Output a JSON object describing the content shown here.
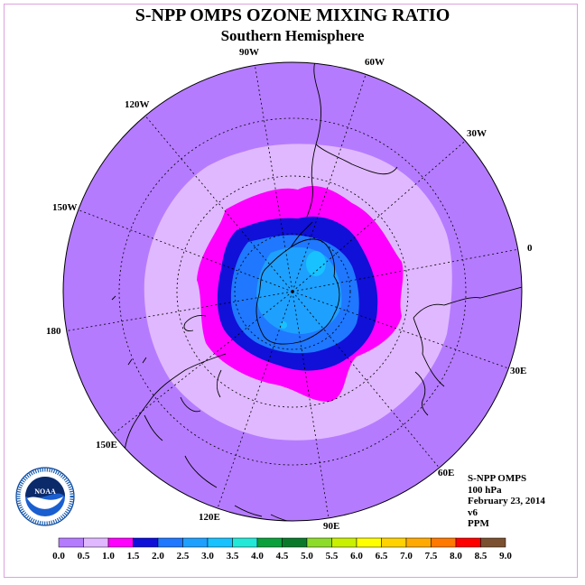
{
  "title": "S-NPP OMPS OZONE MIXING RATIO",
  "subtitle": "Southern Hemisphere",
  "longitude_labels": [
    {
      "key": "90w",
      "text": "90W"
    },
    {
      "key": "60w",
      "text": "60W"
    },
    {
      "key": "30w",
      "text": "30W"
    },
    {
      "key": "0",
      "text": "0"
    },
    {
      "key": "30e",
      "text": "30E"
    },
    {
      "key": "60e",
      "text": "60E"
    },
    {
      "key": "90e",
      "text": "90E"
    },
    {
      "key": "120e",
      "text": "120E"
    },
    {
      "key": "150e",
      "text": "150E"
    },
    {
      "key": "180",
      "text": "180"
    },
    {
      "key": "150w",
      "text": "150W"
    },
    {
      "key": "120w",
      "text": "120W"
    }
  ],
  "logo": {
    "text": "NOAA",
    "ring_text": "NATIONAL OCEANIC AND ATMOSPHERIC ADMINISTRATION · U.S. DEPARTMENT OF COMMERCE"
  },
  "info": {
    "instrument": "S-NPP OMPS",
    "level": "100 hPa",
    "date": "February 23, 2014",
    "version": "v6",
    "units": "PPM"
  },
  "colorbar": {
    "labels": [
      "0.0",
      "0.5",
      "1.0",
      "1.5",
      "2.0",
      "2.5",
      "3.0",
      "3.5",
      "4.0",
      "4.5",
      "5.0",
      "5.5",
      "6.0",
      "6.5",
      "7.0",
      "7.5",
      "8.0",
      "8.5",
      "9.0"
    ],
    "colors": [
      "#b57bff",
      "#e0b8ff",
      "#ff00ff",
      "#1010d8",
      "#1f78ff",
      "#1ea0ff",
      "#18c2ff",
      "#22e8d8",
      "#0aa03c",
      "#0a7a2a",
      "#8edc2a",
      "#c8f000",
      "#ffff00",
      "#ffd200",
      "#ffaa00",
      "#ff7800",
      "#ff0000",
      "#7a5030"
    ]
  },
  "map_colors": {
    "ocean_bg": "#b57bff",
    "ring_lavender": "#e0b8ff",
    "ring_magenta": "#ff00ff",
    "ring_blue": "#1010d8",
    "core_blue": "#1f78ff",
    "inner_blue": "#1ea0ff",
    "spot_cyan": "#18c2ff"
  }
}
